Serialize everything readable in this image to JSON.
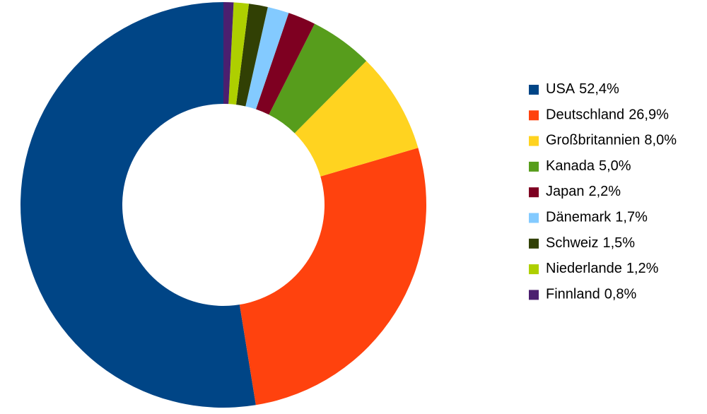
{
  "chart_data": {
    "type": "donut",
    "categories": [
      "USA",
      "Deutschland",
      "Großbritannien",
      "Kanada",
      "Japan",
      "Dänemark",
      "Schweiz",
      "Niederlande",
      "Finnland"
    ],
    "values": [
      52.4,
      26.9,
      8.0,
      5.0,
      2.2,
      1.7,
      1.5,
      1.2,
      0.8
    ],
    "value_labels": [
      "52,4%",
      "26,9%",
      "8,0%",
      "5,0%",
      "2,2%",
      "1,7%",
      "1,5%",
      "1,2%",
      "0,8%"
    ],
    "colors": [
      "#004586",
      "#ff420e",
      "#ffd320",
      "#579d1c",
      "#7e0021",
      "#83caff",
      "#314004",
      "#aecf00",
      "#4b1f6f"
    ],
    "legend": "right"
  }
}
